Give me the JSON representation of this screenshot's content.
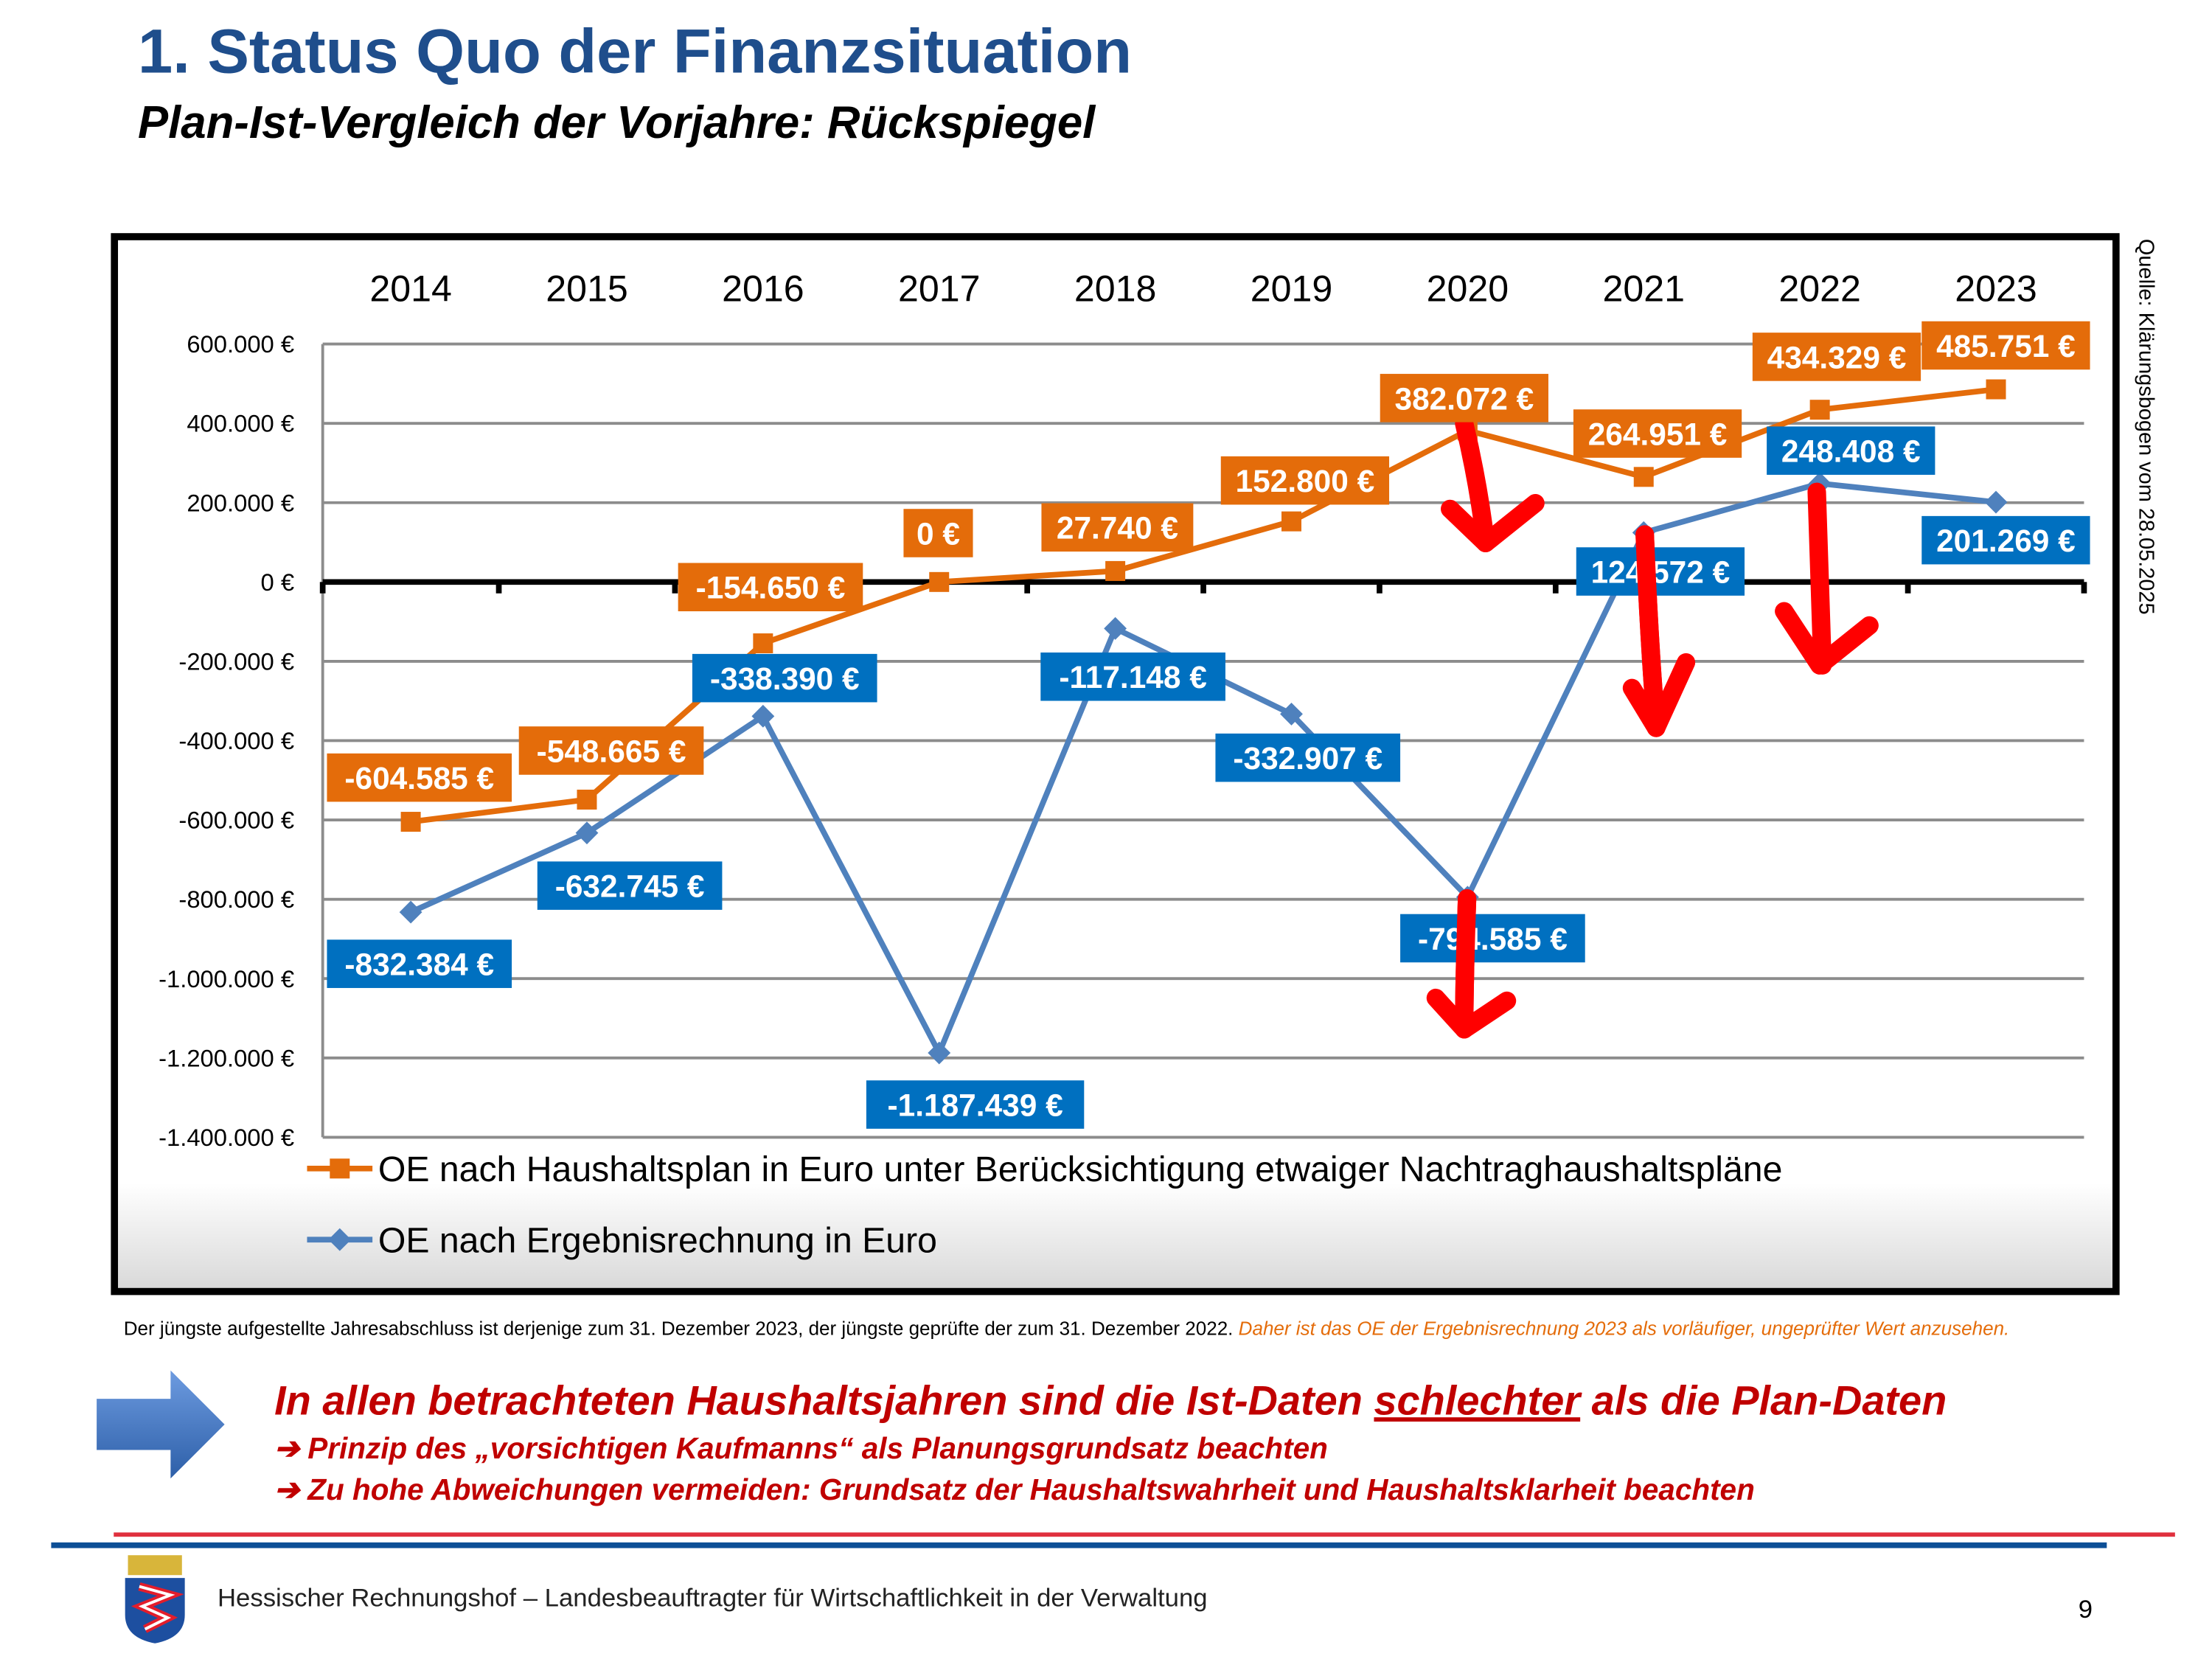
{
  "header": {
    "title": "1. Status Quo der Finanzsituation",
    "subtitle": "Plan-Ist-Vergleich der Vorjahre: Rückspiegel"
  },
  "source_note": "Quelle: Klärungsbogen vom 28.05.2025",
  "chart_data": {
    "type": "line",
    "categories": [
      "2014",
      "2015",
      "2016",
      "2017",
      "2018",
      "2019",
      "2020",
      "2021",
      "2022",
      "2023"
    ],
    "ylim": [
      -1400000,
      600000
    ],
    "yticks": [
      600000,
      400000,
      200000,
      0,
      -200000,
      -400000,
      -600000,
      -800000,
      -1000000,
      -1200000,
      -1400000
    ],
    "ytick_labels": [
      "600.000 €",
      "400.000 €",
      "200.000 €",
      "0 €",
      "-200.000 €",
      "-400.000 €",
      "-600.000 €",
      "-800.000 €",
      "-1.000.000 €",
      "-1.200.000 €",
      "-1.400.000 €"
    ],
    "grid": true,
    "legend_placement": "bottom",
    "series": [
      {
        "name": "OE nach Haushaltsplan in Euro unter Berücksichtigung etwaiger Nachtraghaushaltspläne",
        "color": "#e46c0a",
        "marker": "square",
        "values": [
          -604585,
          -548665,
          -154650,
          0,
          27740,
          152800,
          382072,
          264951,
          434329,
          485751
        ],
        "labels": [
          "-604.585 €",
          "-548.665 €",
          "-154.650 €",
          "0 €",
          "27.740 €",
          "152.800 €",
          "382.072 €",
          "264.951 €",
          "434.329 €",
          "485.751 €"
        ]
      },
      {
        "name": "OE nach Ergebnisrechnung in Euro",
        "color": "#4f81bd",
        "label_color": "#0070c0",
        "marker": "diamond",
        "values": [
          -832384,
          -632745,
          -338390,
          -1187439,
          -117148,
          -332907,
          -794585,
          124572,
          248408,
          201269
        ],
        "labels": [
          "-832.384 €",
          "-632.745 €",
          "-338.390 €",
          "-1.187.439 €",
          "-117.148 €",
          "-332.907 €",
          "-794.585 €",
          "124.572 €",
          "248.408 €",
          "201.269 €"
        ]
      }
    ]
  },
  "footnote": {
    "text": "Der jüngste aufgestellte Jahresabschluss ist derjenige zum 31. Dezember 2023, der jüngste geprüfte der zum 31. Dezember 2022.",
    "highlight": "Daher ist das OE der Ergebnisrechnung 2023 als vorläufiger, ungeprüfter Wert anzusehen."
  },
  "conclusion": {
    "before": "In allen betrachteten Haushaltsjahren sind die Ist-Daten ",
    "underlined": "schlechter",
    "after": " als die Plan-Daten",
    "bullets": [
      "➔ Prinzip des „vorsichtigen Kaufmanns“ als Planungsgrundsatz beachten",
      "➔ Zu hohe Abweichungen vermeiden: Grundsatz der Haushaltswahrheit und Haushaltsklarheit beachten"
    ]
  },
  "footer": {
    "organization": "Hessischer Rechnungshof – Landesbeauftragter für Wirtschaftlichkeit in der Verwaltung",
    "page_number": "9"
  }
}
